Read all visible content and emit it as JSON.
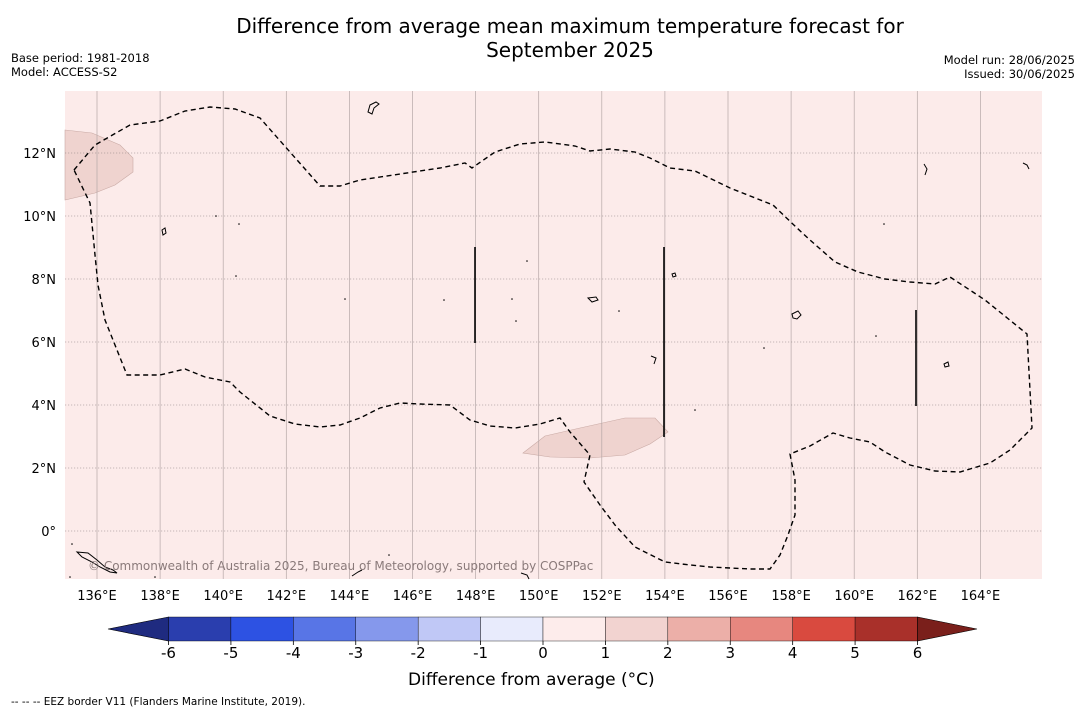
{
  "title_line1": "Difference from average mean maximum temperature forecast for",
  "title_line2": "September 2025",
  "base_period": "Base period: 1981-2018",
  "model": "Model: ACCESS-S2",
  "model_run": "Model run: 28/06/2025",
  "issued": "Issued: 30/06/2025",
  "copyright": "© Commonwealth of Australia 2025, Bureau of Meteorology, supported by COSPPac",
  "footer": "--  --  -- EEZ border V11 (Flanders Marine Institute, 2019).",
  "lon_labels": [
    "136°E",
    "138°E",
    "140°E",
    "142°E",
    "144°E",
    "146°E",
    "148°E",
    "150°E",
    "152°E",
    "154°E",
    "156°E",
    "158°E",
    "160°E",
    "162°E",
    "164°E"
  ],
  "lat_labels": [
    "12°N",
    "10°N",
    "8°N",
    "6°N",
    "4°N",
    "2°N",
    "0°"
  ],
  "colorbar": {
    "label": "Difference from average (°C)",
    "ticks": [
      "-6",
      "-5",
      "-4",
      "-3",
      "-2",
      "-1",
      "0",
      "1",
      "2",
      "3",
      "4",
      "5",
      "6"
    ],
    "colors": [
      "#2a3eae",
      "#2d52e3",
      "#5875e6",
      "#8598ec",
      "#c0c8f6",
      "#e8ebfc",
      "#fdeceb",
      "#f2d3d0",
      "#ecafa8",
      "#e7877f",
      "#d94a3f",
      "#a9302a"
    ],
    "under_color": "#1f2b80",
    "over_color": "#7a1f1b"
  },
  "map_colors": {
    "background": "#fcebea",
    "anomaly_patch": "#efd3cf"
  }
}
